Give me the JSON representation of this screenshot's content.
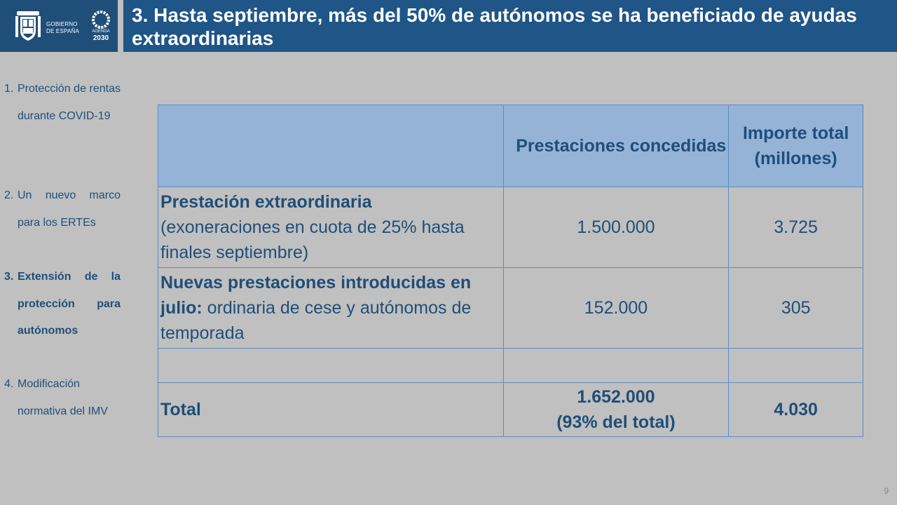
{
  "header": {
    "gov_line1": "GOBIERNO",
    "gov_line2": "DE ESPAÑA",
    "agenda_label": "AGENDA",
    "agenda_year": "2030",
    "title": "3. Hasta septiembre, más del 50% de autónomos se ha beneficiado de ayudas extraordinarias"
  },
  "sidebar": {
    "items": [
      {
        "num": "1.",
        "label": "Protección de rentas durante COVID-19"
      },
      {
        "num": "2.",
        "label": "Un nuevo marco para los ERTEs"
      },
      {
        "num": "3.",
        "label": "Extensión de la protección para autónomos"
      },
      {
        "num": "4.",
        "label": "Modificación normativa del IMV"
      }
    ]
  },
  "table": {
    "headers": [
      "",
      "Prestaciones concedidas",
      "Importe total (millones)"
    ],
    "rows": [
      {
        "title": "Prestación extraordinaria",
        "desc": "(exoneraciones en cuota de 25% hasta finales septiembre)",
        "prestaciones": "1.500.000",
        "importe": "3.725"
      },
      {
        "title": "Nuevas prestaciones introducidas en julio:",
        "desc": " ordinaria de cese y autónomos de temporada",
        "prestaciones": "152.000",
        "importe": "305"
      }
    ],
    "total": {
      "label": "Total",
      "prestaciones": "1.652.000",
      "prestaciones_note": "(93% del total)",
      "importe": "4.030"
    }
  },
  "page_number": "9",
  "colors": {
    "title_bar": "#1f5587",
    "header_row": "#95b3d7",
    "text": "#1f4e79",
    "background": "#c0c0c0"
  }
}
